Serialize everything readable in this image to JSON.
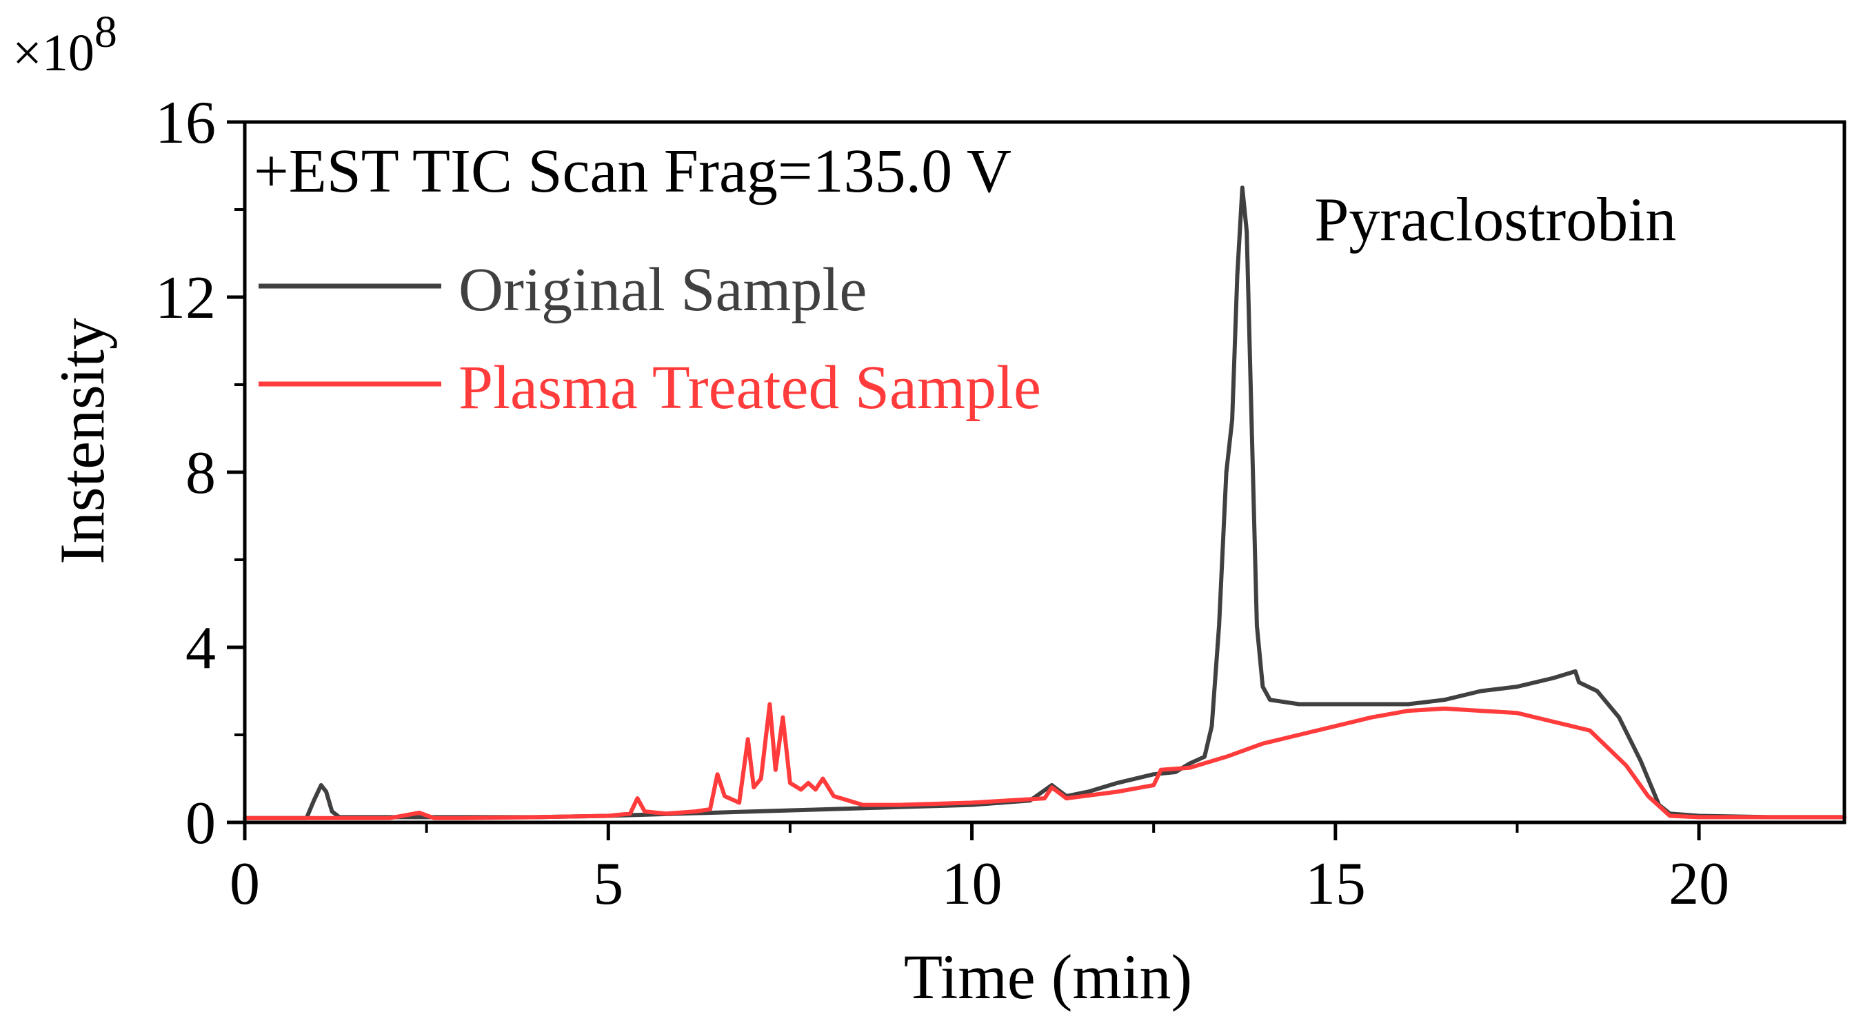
{
  "chart_data": {
    "type": "line",
    "title": "+EST TIC Scan Frag=135.0 V",
    "xlabel": "Time (min)",
    "ylabel": "Instensity",
    "y_multiplier": "×10",
    "y_multiplier_exponent": "8",
    "xlim": [
      0,
      22
    ],
    "ylim": [
      0,
      16
    ],
    "xticks": [
      0,
      5,
      10,
      15,
      20
    ],
    "yticks": [
      0,
      4,
      8,
      12,
      16
    ],
    "x_minor_step": 2.5,
    "y_minor_step": 2,
    "grid": false,
    "legend_position": "top-left",
    "annotations": [
      {
        "text": "Pyraclostrobin",
        "x": 17.2,
        "y": 13.3
      }
    ],
    "series": [
      {
        "name": "Original Sample",
        "color": "#404040",
        "points": [
          [
            0,
            0.1
          ],
          [
            0.5,
            0.1
          ],
          [
            0.85,
            0.1
          ],
          [
            0.95,
            0.5
          ],
          [
            1.05,
            0.85
          ],
          [
            1.12,
            0.7
          ],
          [
            1.2,
            0.25
          ],
          [
            1.3,
            0.12
          ],
          [
            2,
            0.12
          ],
          [
            3,
            0.12
          ],
          [
            4,
            0.12
          ],
          [
            5,
            0.15
          ],
          [
            6,
            0.2
          ],
          [
            7,
            0.25
          ],
          [
            8,
            0.3
          ],
          [
            9,
            0.35
          ],
          [
            10,
            0.4
          ],
          [
            10.8,
            0.5
          ],
          [
            11.1,
            0.85
          ],
          [
            11.3,
            0.6
          ],
          [
            11.6,
            0.7
          ],
          [
            12,
            0.9
          ],
          [
            12.5,
            1.1
          ],
          [
            12.8,
            1.15
          ],
          [
            13.0,
            1.35
          ],
          [
            13.2,
            1.5
          ],
          [
            13.3,
            2.2
          ],
          [
            13.4,
            4.5
          ],
          [
            13.5,
            8.0
          ],
          [
            13.58,
            9.2
          ],
          [
            13.65,
            12.5
          ],
          [
            13.72,
            14.5
          ],
          [
            13.78,
            13.5
          ],
          [
            13.85,
            9.0
          ],
          [
            13.92,
            4.5
          ],
          [
            14.0,
            3.1
          ],
          [
            14.1,
            2.8
          ],
          [
            14.5,
            2.7
          ],
          [
            15,
            2.7
          ],
          [
            16,
            2.7
          ],
          [
            16.5,
            2.8
          ],
          [
            17,
            3.0
          ],
          [
            17.5,
            3.1
          ],
          [
            18,
            3.3
          ],
          [
            18.3,
            3.45
          ],
          [
            18.35,
            3.2
          ],
          [
            18.6,
            3.0
          ],
          [
            18.9,
            2.4
          ],
          [
            19.2,
            1.4
          ],
          [
            19.45,
            0.4
          ],
          [
            19.6,
            0.2
          ],
          [
            20,
            0.15
          ],
          [
            21,
            0.12
          ],
          [
            22,
            0.12
          ]
        ]
      },
      {
        "name": "Plasma Treated Sample",
        "color": "#ff3b3b",
        "points": [
          [
            0,
            0.1
          ],
          [
            1,
            0.1
          ],
          [
            2,
            0.1
          ],
          [
            2.4,
            0.22
          ],
          [
            2.6,
            0.1
          ],
          [
            3,
            0.1
          ],
          [
            4,
            0.12
          ],
          [
            5,
            0.15
          ],
          [
            5.3,
            0.2
          ],
          [
            5.4,
            0.55
          ],
          [
            5.5,
            0.25
          ],
          [
            5.8,
            0.2
          ],
          [
            6.2,
            0.25
          ],
          [
            6.4,
            0.3
          ],
          [
            6.5,
            1.1
          ],
          [
            6.6,
            0.6
          ],
          [
            6.8,
            0.45
          ],
          [
            6.92,
            1.9
          ],
          [
            7.0,
            0.8
          ],
          [
            7.1,
            1.0
          ],
          [
            7.22,
            2.7
          ],
          [
            7.3,
            1.2
          ],
          [
            7.4,
            2.4
          ],
          [
            7.5,
            0.9
          ],
          [
            7.65,
            0.75
          ],
          [
            7.75,
            0.9
          ],
          [
            7.85,
            0.75
          ],
          [
            7.95,
            1.0
          ],
          [
            8.1,
            0.6
          ],
          [
            8.5,
            0.4
          ],
          [
            9,
            0.4
          ],
          [
            10,
            0.45
          ],
          [
            10.5,
            0.5
          ],
          [
            11,
            0.55
          ],
          [
            11.1,
            0.8
          ],
          [
            11.3,
            0.55
          ],
          [
            12,
            0.7
          ],
          [
            12.5,
            0.85
          ],
          [
            12.6,
            1.2
          ],
          [
            13,
            1.25
          ],
          [
            13.5,
            1.5
          ],
          [
            14,
            1.8
          ],
          [
            14.5,
            2.0
          ],
          [
            15,
            2.2
          ],
          [
            15.5,
            2.4
          ],
          [
            16,
            2.55
          ],
          [
            16.5,
            2.6
          ],
          [
            17,
            2.55
          ],
          [
            17.5,
            2.5
          ],
          [
            18,
            2.3
          ],
          [
            18.5,
            2.1
          ],
          [
            19,
            1.3
          ],
          [
            19.3,
            0.6
          ],
          [
            19.6,
            0.15
          ],
          [
            20,
            0.12
          ],
          [
            21,
            0.12
          ],
          [
            22,
            0.12
          ]
        ]
      }
    ]
  }
}
